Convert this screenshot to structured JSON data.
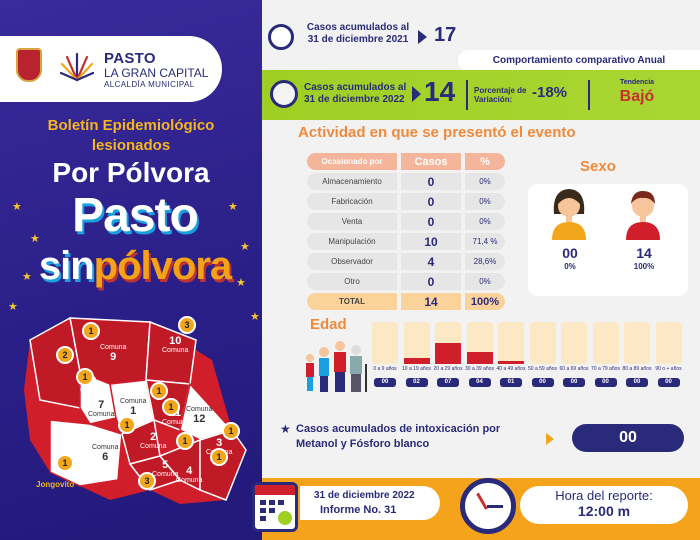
{
  "logo": {
    "line1": "PASTO",
    "line2": "LA GRAN CAPITAL",
    "line3": "ALCALDÍA MUNICIPAL"
  },
  "left": {
    "boletin": "Boletín Epidemiológico lesionados",
    "por_polvora": "Por Pólvora",
    "pasto": "Pasto",
    "sin": "sin",
    "polvora": "pólvora"
  },
  "map": {
    "comunas": [
      {
        "num": "9",
        "label": "Comuna"
      },
      {
        "num": "10",
        "label": "Comuna"
      },
      {
        "num": "8",
        "label": "Comuna"
      },
      {
        "num": "7",
        "label": "Comuna"
      },
      {
        "num": "1",
        "label": "Comuna"
      },
      {
        "num": "11",
        "label": "Comuna"
      },
      {
        "num": "12",
        "label": "Comuna"
      },
      {
        "num": "6",
        "label": "Comuna"
      },
      {
        "num": "2",
        "label": "Comuna"
      },
      {
        "num": "5",
        "label": "Comuna"
      },
      {
        "num": "4",
        "label": "Comuna"
      },
      {
        "num": "3",
        "label": "Comuna"
      }
    ],
    "pins": [
      "1",
      "3",
      "2",
      "1",
      "1",
      "1",
      "1",
      "1",
      "1",
      "1",
      "3",
      "1"
    ],
    "jongovito": "Jongovito"
  },
  "header": {
    "acum_2021_label": "Casos acumulados al 31 de diciembre 2021",
    "acum_2021_value": "17",
    "comparativo": "Comportamiento comparativo Anual",
    "acum_2022_label": "Casos acumulados al 31 de diciembre 2022",
    "acum_2022_value": "14",
    "pct_label": "Porcentaje de Variación:",
    "pct_value": "-18%",
    "tend_label": "Tendencia",
    "tend_value": "Bajó"
  },
  "actividad": {
    "title": "Actividad en que se presentó el evento",
    "headers": [
      "Ocasionado por",
      "Casos",
      "%"
    ],
    "rows": [
      {
        "name": "Almacenamiento",
        "casos": "0",
        "pct": "0%"
      },
      {
        "name": "Fabricación",
        "casos": "0",
        "pct": "0%"
      },
      {
        "name": "Venta",
        "casos": "0",
        "pct": "0%"
      },
      {
        "name": "Manipulación",
        "casos": "10",
        "pct": "71,4 %"
      },
      {
        "name": "Observador",
        "casos": "4",
        "pct": "28,6%"
      },
      {
        "name": "Otro",
        "casos": "0",
        "pct": "0%"
      }
    ],
    "total": {
      "name": "TOTAL",
      "casos": "14",
      "pct": "100%"
    }
  },
  "sexo": {
    "title": "Sexo",
    "female": {
      "value": "00",
      "pct": "0%"
    },
    "male": {
      "value": "14",
      "pct": "100%"
    }
  },
  "edad": {
    "title": "Edad",
    "groups": [
      {
        "label": "0 a 9 años",
        "value": "00",
        "fill": 0
      },
      {
        "label": "10 a 19 años",
        "value": "02",
        "fill": 0.14
      },
      {
        "label": "20 a 29 años",
        "value": "07",
        "fill": 0.5
      },
      {
        "label": "30 a 39 años",
        "value": "04",
        "fill": 0.29
      },
      {
        "label": "40 a 49 años",
        "value": "01",
        "fill": 0.07
      },
      {
        "label": "50 a 59 años",
        "value": "00",
        "fill": 0
      },
      {
        "label": "60 a 69 años",
        "value": "00",
        "fill": 0
      },
      {
        "label": "70 a 79 años",
        "value": "00",
        "fill": 0
      },
      {
        "label": "80 a 89 años",
        "value": "00",
        "fill": 0
      },
      {
        "label": "90 o + años",
        "value": "00",
        "fill": 0
      }
    ]
  },
  "metanol": {
    "label": "Casos acumulados de intoxicación por Metanol y Fósforo blanco",
    "value": "00"
  },
  "footer": {
    "date": "31 de diciembre 2022",
    "informe": "Informe No. 31",
    "hora_label": "Hora del reporte:",
    "hora_value": "12:00 m"
  }
}
